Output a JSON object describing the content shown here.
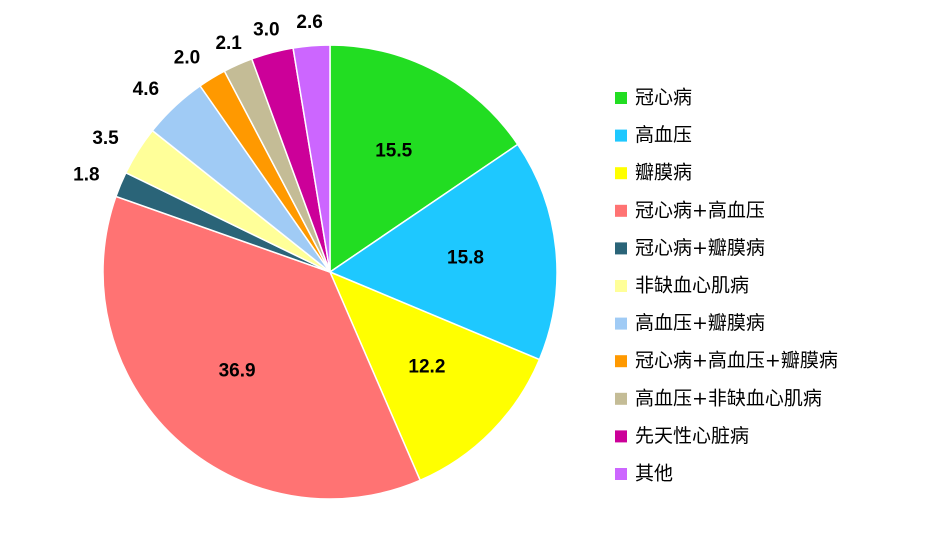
{
  "chart_data": {
    "type": "pie",
    "categories": [
      "冠心病",
      "高血压",
      "瓣膜病",
      "冠心病+高血压",
      "冠心病+瓣膜病",
      "非缺血心肌病",
      "高血压+瓣膜病",
      "冠心病+高血压+瓣膜病",
      "高血压+非缺血心肌病",
      "先天性心脏病",
      "其他"
    ],
    "values": [
      15.5,
      15.8,
      12.2,
      36.9,
      1.8,
      3.5,
      4.6,
      2.0,
      2.1,
      3.0,
      2.6
    ],
    "value_labels": [
      "15.5",
      "15.8",
      "12.2",
      "36.9",
      "1.8",
      "3.5",
      "4.6",
      "2.0",
      "2.1",
      "3.0",
      "2.6"
    ],
    "colors": [
      "#22dd22",
      "#1ec8ff",
      "#ffff00",
      "#ff7373",
      "#2a6478",
      "#ffff99",
      "#a0cbf5",
      "#ff9900",
      "#c4bc96",
      "#cc0099",
      "#cc66ff"
    ],
    "legend": "right"
  }
}
